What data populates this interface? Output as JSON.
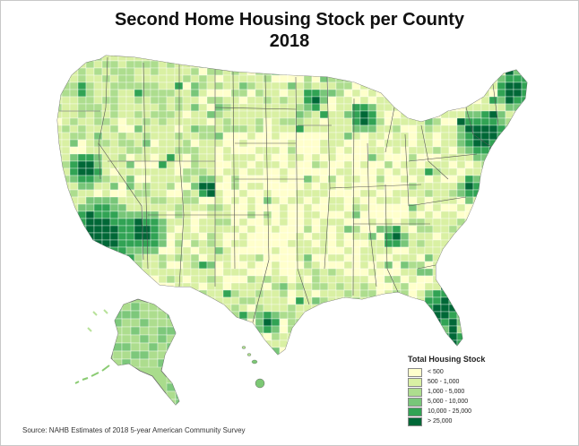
{
  "title": {
    "line1": "Second Home Housing Stock per County",
    "line2": "2018"
  },
  "legend": {
    "title": "Total Housing Stock",
    "items": [
      {
        "label": "< 500",
        "color": "#ffffcc"
      },
      {
        "label": "500 - 1,000",
        "color": "#d9f0a3"
      },
      {
        "label": "1,000 - 5,000",
        "color": "#addd8e"
      },
      {
        "label": "5,000 - 10,000",
        "color": "#78c679"
      },
      {
        "label": "10,000 - 25,000",
        "color": "#31a354"
      },
      {
        "label": "> 25,000",
        "color": "#006837"
      }
    ]
  },
  "source": "Source: NAHB Estimates of 2018 5-year American Community Survey"
}
